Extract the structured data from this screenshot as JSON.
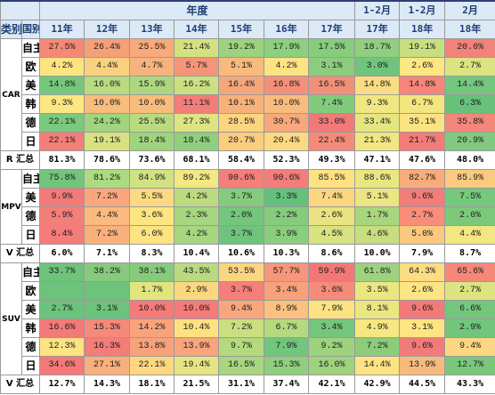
{
  "header": {
    "group_title": "年度",
    "type_label": "类别",
    "country_label": "国别",
    "period_labels": [
      "1-2月",
      "1-2月",
      "2月"
    ],
    "years": [
      "11年",
      "12年",
      "13年",
      "14年",
      "15年",
      "16年",
      "17年",
      "17年",
      "18年",
      "18年"
    ]
  },
  "sections": [
    {
      "category": "CAR",
      "total_label": "R 汇总",
      "rows": [
        {
          "label": "自主",
          "values": [
            "27.5%",
            "26.4%",
            "25.5%",
            "21.4%",
            "19.2%",
            "17.9%",
            "17.5%",
            "18.7%",
            "19.1%",
            "20.0%"
          ],
          "colors": [
            "#f48a76",
            "#f6a078",
            "#f8aa7a",
            "#d3e27f",
            "#9cd37d",
            "#8ccf7c",
            "#86cd7c",
            "#8fcf7d",
            "#c8df80",
            "#f2837a"
          ]
        },
        {
          "label": "欧",
          "values": [
            "4.2%",
            "4.4%",
            "4.7%",
            "5.7%",
            "5.1%",
            "4.2%",
            "3.1%",
            "3.0%",
            "2.6%",
            "2.7%"
          ],
          "colors": [
            "#fee481",
            "#fbd17f",
            "#f7b37d",
            "#f4957a",
            "#f8ba7d",
            "#fde382",
            "#8ccd7d",
            "#70c57c",
            "#fee782",
            "#dce381"
          ]
        },
        {
          "label": "美",
          "values": [
            "14.8%",
            "16.0%",
            "15.9%",
            "16.2%",
            "16.4%",
            "16.8%",
            "16.5%",
            "14.8%",
            "14.8%",
            "14.4%"
          ],
          "colors": [
            "#76c77c",
            "#b8da80",
            "#acd77f",
            "#cbe081",
            "#f6a67b",
            "#f48f7a",
            "#f19079",
            "#fcdc82",
            "#f7857a",
            "#74c77d"
          ]
        },
        {
          "label": "韩",
          "values": [
            "9.3%",
            "10.0%",
            "10.0%",
            "11.1%",
            "10.1%",
            "10.0%",
            "7.4%",
            "9.3%",
            "6.7%",
            "6.3%"
          ],
          "colors": [
            "#fde782",
            "#f8bc7d",
            "#f8bd7d",
            "#f47d79",
            "#f7b27c",
            "#f8bd7d",
            "#80cc7c",
            "#f1e782",
            "#f3e580",
            "#67c17b"
          ]
        },
        {
          "label": "德",
          "values": [
            "22.1%",
            "24.2%",
            "25.5%",
            "27.3%",
            "28.5%",
            "30.7%",
            "33.0%",
            "33.4%",
            "35.1%",
            "35.8%"
          ],
          "colors": [
            "#7ac97d",
            "#a0d47e",
            "#b9db80",
            "#dde482",
            "#fbd580",
            "#f7a97b",
            "#f17a79",
            "#e6e681",
            "#fde482",
            "#f4867a"
          ]
        },
        {
          "label": "日",
          "values": [
            "22.1%",
            "19.1%",
            "18.4%",
            "18.4%",
            "20.7%",
            "20.4%",
            "22.4%",
            "21.3%",
            "21.7%",
            "20.9%"
          ],
          "colors": [
            "#f37f79",
            "#d8e281",
            "#9ed47e",
            "#8fcf7d",
            "#fccc7f",
            "#fdda81",
            "#f58a7a",
            "#f0e782",
            "#f37c78",
            "#7fca7c"
          ]
        }
      ],
      "totals": [
        "81.3%",
        "78.6%",
        "73.6%",
        "68.1%",
        "58.4%",
        "52.3%",
        "49.3%",
        "47.1%",
        "47.6%",
        "48.0%"
      ]
    },
    {
      "category": "MPV",
      "total_label": "V 汇总",
      "rows": [
        {
          "label": "自主",
          "values": [
            "75.8%",
            "81.2%",
            "84.9%",
            "89.2%",
            "90.6%",
            "90.6%",
            "85.5%",
            "88.6%",
            "82.7%",
            "85.9%"
          ],
          "colors": [
            "#72c67c",
            "#addb80",
            "#d0e281",
            "#f3e882",
            "#f57f79",
            "#f47c79",
            "#fee281",
            "#eae782",
            "#f8ac7c",
            "#faca7f"
          ]
        },
        {
          "label": "美",
          "values": [
            "9.9%",
            "7.2%",
            "5.5%",
            "4.2%",
            "3.7%",
            "3.3%",
            "7.4%",
            "5.1%",
            "9.6%",
            "7.5%"
          ],
          "colors": [
            "#f37a78",
            "#fba77d",
            "#fdda81",
            "#bcdb80",
            "#84cc7c",
            "#64c07b",
            "#fdd780",
            "#ece581",
            "#f27d79",
            "#75c87c"
          ]
        },
        {
          "label": "德",
          "values": [
            "5.9%",
            "4.4%",
            "3.6%",
            "2.3%",
            "2.0%",
            "2.2%",
            "2.6%",
            "1.7%",
            "2.7%",
            "2.0%"
          ],
          "colors": [
            "#f37f79",
            "#fbba7e",
            "#fde582",
            "#a6d67f",
            "#74c67c",
            "#84cc7c",
            "#eae381",
            "#a8d67f",
            "#f88e7a",
            "#7dc97c"
          ]
        },
        {
          "label": "日",
          "values": [
            "8.4%",
            "7.2%",
            "6.0%",
            "4.2%",
            "3.7%",
            "3.9%",
            "4.5%",
            "4.6%",
            "5.0%",
            "4.4%"
          ],
          "colors": [
            "#f57c79",
            "#fab07d",
            "#fee382",
            "#a6d67f",
            "#6ec47c",
            "#89ce7d",
            "#d7e281",
            "#c7dd80",
            "#fbc87f",
            "#f4e782"
          ]
        }
      ],
      "totals": [
        "6.0%",
        "7.1%",
        "8.3%",
        "10.4%",
        "10.6%",
        "10.3%",
        "8.6%",
        "10.0%",
        "7.9%",
        "8.7%"
      ]
    },
    {
      "category": "SUV",
      "total_label": "V 汇总",
      "rows": [
        {
          "label": "自主",
          "values": [
            "33.7%",
            "38.2%",
            "38.1%",
            "43.5%",
            "53.5%",
            "57.7%",
            "59.9%",
            "61.8%",
            "64.3%",
            "65.6%"
          ],
          "colors": [
            "#6ec47b",
            "#86cb7c",
            "#86cb7c",
            "#b9da80",
            "#fbd681",
            "#f6967a",
            "#f27878",
            "#9ed27e",
            "#fddd81",
            "#f6887a"
          ]
        },
        {
          "label": "欧",
          "values": [
            "",
            "",
            "1.7%",
            "2.9%",
            "3.7%",
            "3.4%",
            "3.6%",
            "3.5%",
            "2.6%",
            "2.7%"
          ],
          "colors": [
            "#6cc37b",
            "#6cc37b",
            "#e2e480",
            "#fbd780",
            "#f67f79",
            "#f8a17b",
            "#f58b79",
            "#ebe682",
            "#fee482",
            "#dce381"
          ]
        },
        {
          "label": "美",
          "values": [
            "2.7%",
            "3.1%",
            "10.0%",
            "10.0%",
            "9.4%",
            "8.9%",
            "7.9%",
            "8.1%",
            "9.6%",
            "6.6%"
          ],
          "colors": [
            "#6cc37b",
            "#6cc37b",
            "#f47b79",
            "#f47b79",
            "#f8a77c",
            "#fbc17e",
            "#fde282",
            "#ece681",
            "#f27b79",
            "#73c77c"
          ]
        },
        {
          "label": "韩",
          "values": [
            "16.6%",
            "15.3%",
            "14.2%",
            "10.4%",
            "7.2%",
            "6.7%",
            "3.4%",
            "4.9%",
            "3.1%",
            "2.9%"
          ],
          "colors": [
            "#f47978",
            "#f6897a",
            "#f8a37c",
            "#fee281",
            "#c9df80",
            "#b4d97f",
            "#74c67c",
            "#f7e781",
            "#fee582",
            "#72c57c"
          ]
        },
        {
          "label": "德",
          "values": [
            "12.3%",
            "16.3%",
            "13.8%",
            "13.9%",
            "9.7%",
            "7.9%",
            "9.2%",
            "7.2%",
            "9.6%",
            "9.4%"
          ],
          "colors": [
            "#fde382",
            "#f47c79",
            "#f8a27c",
            "#f8a57c",
            "#b4d97f",
            "#72c57c",
            "#9ed37e",
            "#8ccd7c",
            "#f27b79",
            "#fdd781"
          ]
        },
        {
          "label": "日",
          "values": [
            "34.6%",
            "27.1%",
            "22.1%",
            "19.4%",
            "16.5%",
            "15.3%",
            "16.0%",
            "14.4%",
            "13.9%",
            "12.7%"
          ],
          "colors": [
            "#f37a78",
            "#f9af7c",
            "#fdd881",
            "#e7e582",
            "#a9d67f",
            "#90cf7d",
            "#9ed37e",
            "#fde382",
            "#f9ba7d",
            "#79c87c"
          ]
        }
      ],
      "totals": [
        "12.7%",
        "14.3%",
        "18.1%",
        "21.5%",
        "31.1%",
        "37.4%",
        "42.1%",
        "42.9%",
        "44.5%",
        "43.3%"
      ]
    }
  ]
}
